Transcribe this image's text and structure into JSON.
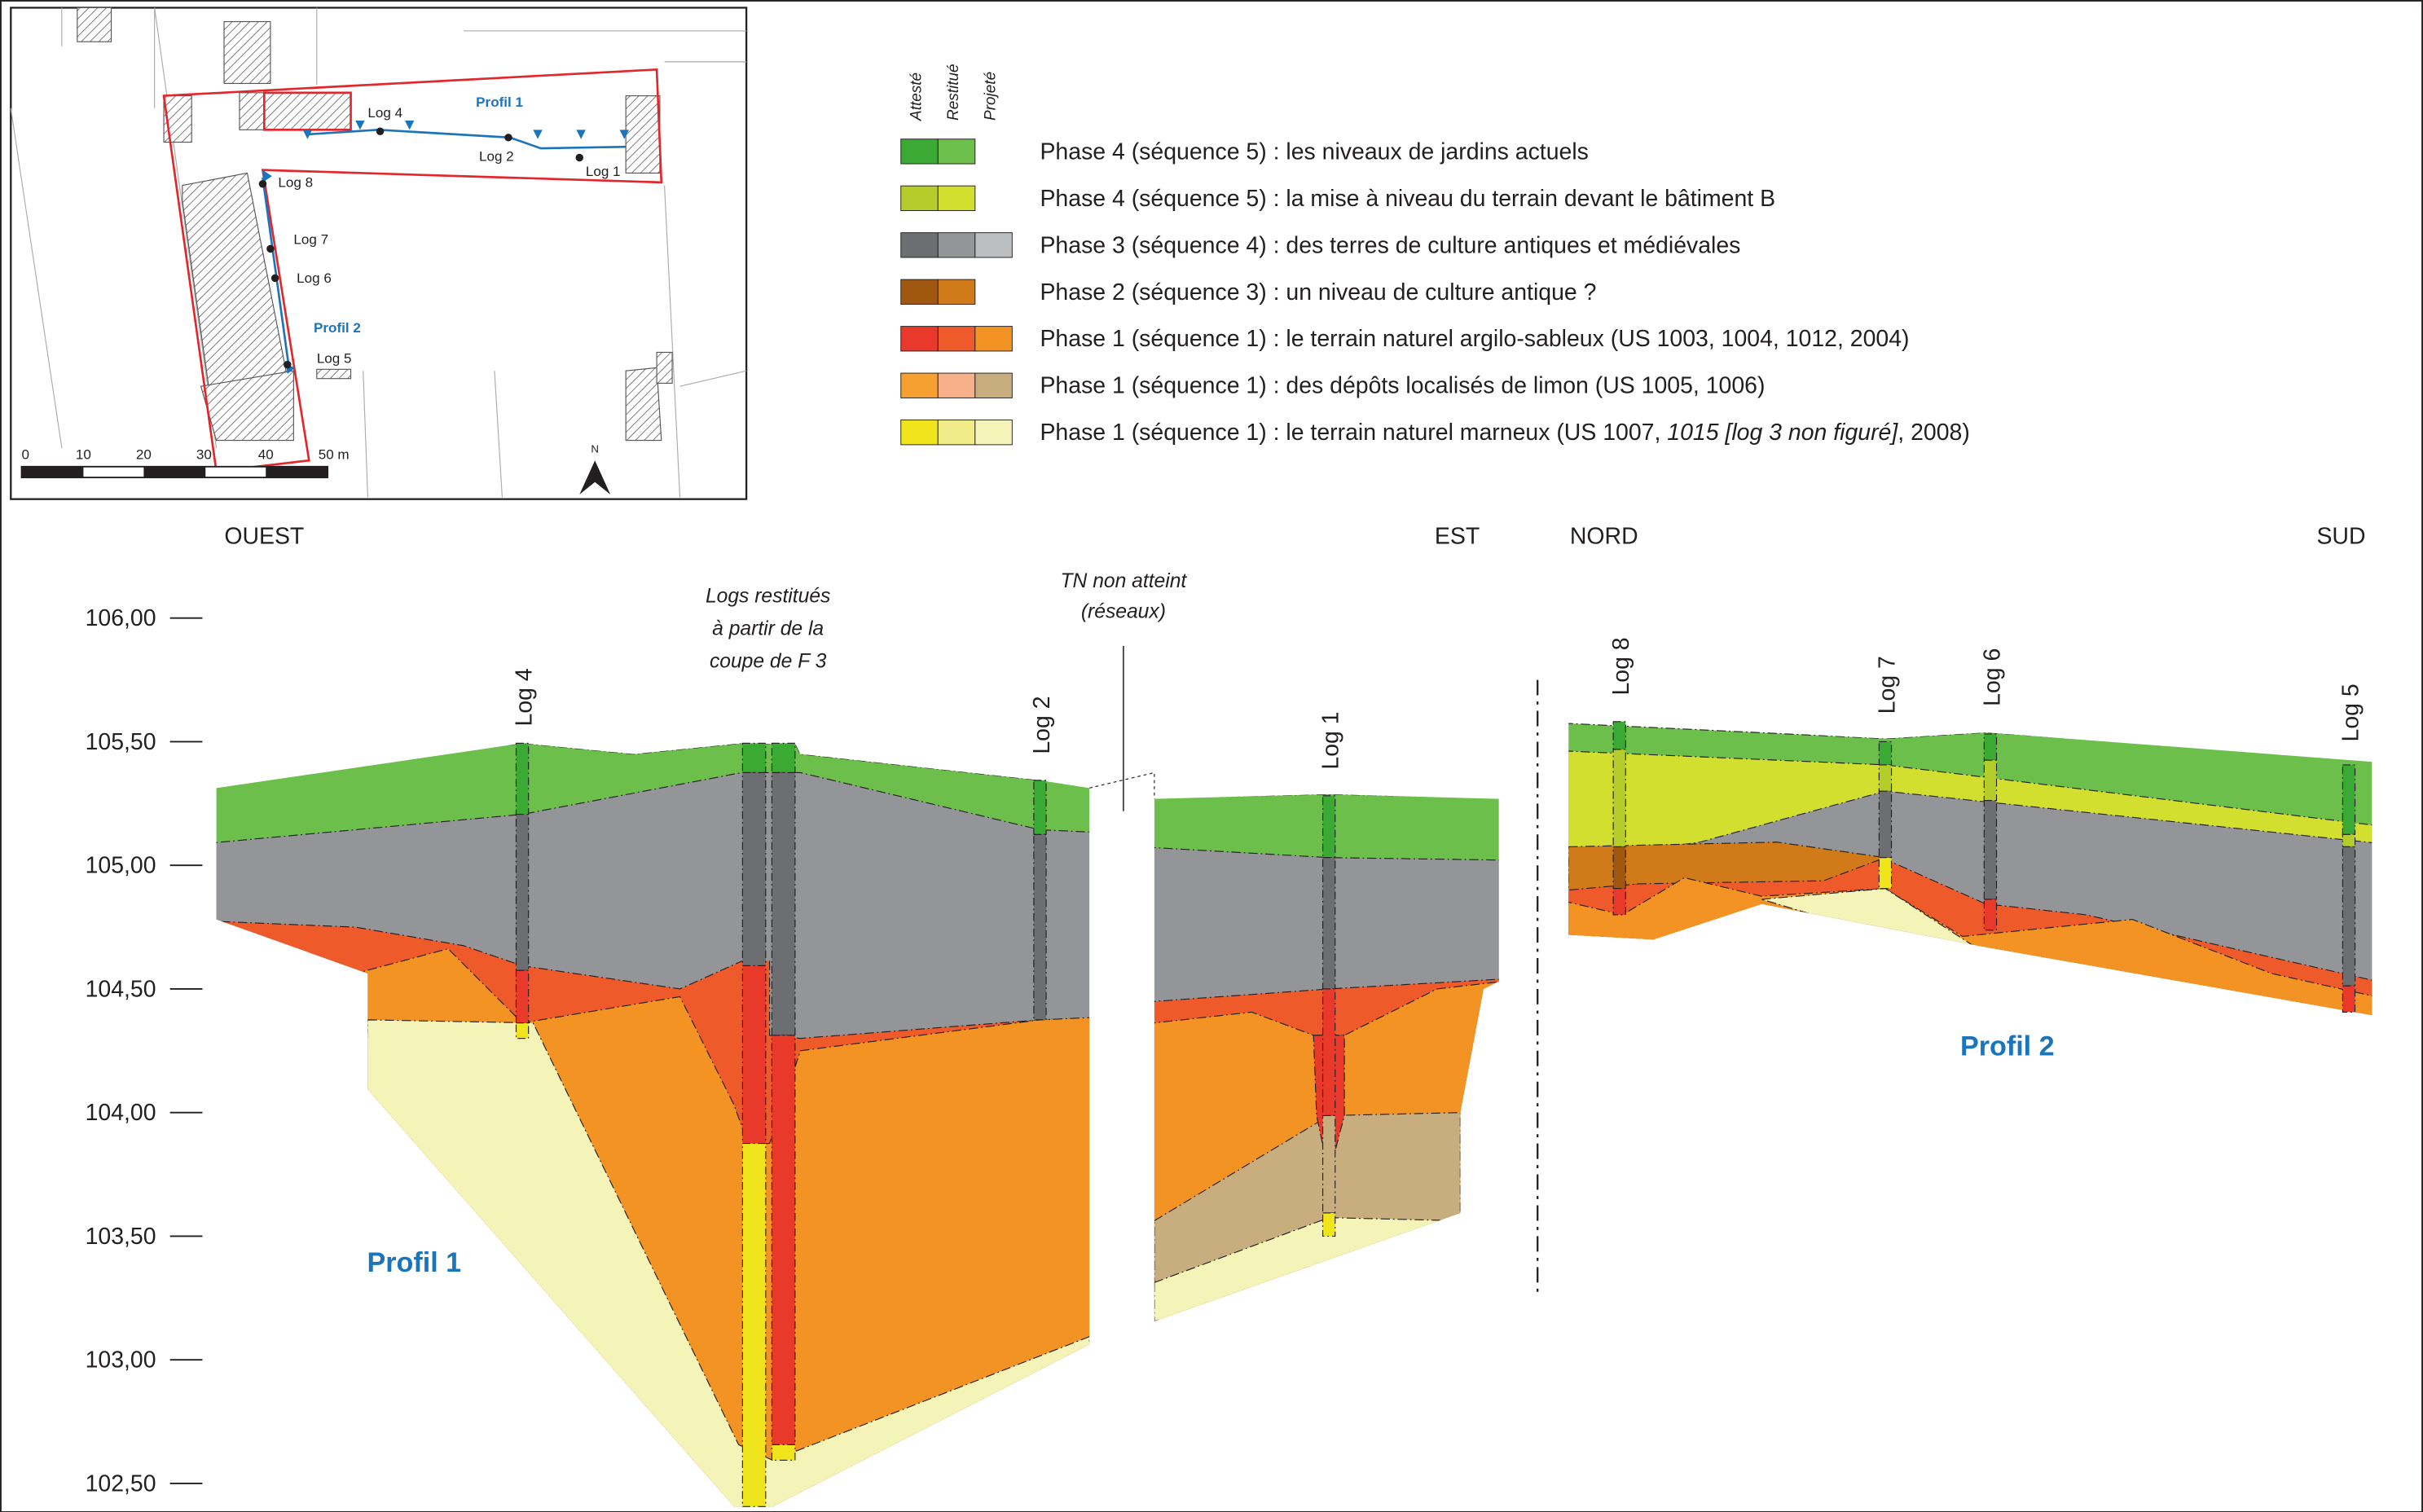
{
  "map": {
    "logs": [
      "Log 4",
      "Log 2",
      "Log 1",
      "Log 8",
      "Log 7",
      "Log 6",
      "Log 5"
    ],
    "profiles": [
      "Profil 1",
      "Profil 2"
    ],
    "scale": [
      "0",
      "10",
      "20",
      "30",
      "40",
      "50 m"
    ],
    "north": "N"
  },
  "legend": {
    "columns": [
      "Attesté",
      "Restitué",
      "Projeté"
    ],
    "items": [
      {
        "label": "Phase 4 (séquence 5) : les niveaux de jardins actuels",
        "colors": [
          "#3aaa35",
          "#6cbf4a"
        ]
      },
      {
        "label": "Phase 4 (séquence 5) : la mise à niveau du terrain devant le bâtiment B",
        "colors": [
          "#b5cd2a",
          "#d3df2e"
        ]
      },
      {
        "label": "Phase 3 (séquence 4) : des terres de culture antiques et médiévales",
        "colors": [
          "#6d6e71",
          "#939598",
          "#bcbec0"
        ]
      },
      {
        "label": "Phase 2 (séquence 3) : un niveau de culture antique ?",
        "colors": [
          "#a0570f",
          "#d07a1a"
        ]
      },
      {
        "label": "Phase 1 (séquence 1) : le terrain naturel argilo-sableux (US 1003, 1004, 1012, 2004)",
        "colors": [
          "#e8392a",
          "#ef5a2a",
          "#f39323"
        ]
      },
      {
        "label": "Phase 1 (séquence 1) : des dépôts localisés de limon (US 1005, 1006)",
        "colors": [
          "#f5a030",
          "#f7b08a",
          "#c8ad7f"
        ]
      },
      {
        "label": "Phase 1 (séquence 1) : le terrain naturel marneux (US 1007, ",
        "label_italic": "1015 [log 3 non figuré]",
        "label_end": ", 2008)",
        "colors": [
          "#f0e51c",
          "#f1ec8a",
          "#f4f3b8"
        ]
      }
    ]
  },
  "section": {
    "directions": [
      "OUEST",
      "EST",
      "NORD",
      "SUD"
    ],
    "elevations": [
      "106,00",
      "105,50",
      "105,00",
      "104,50",
      "104,00",
      "103,50",
      "103,00",
      "102,50"
    ],
    "logs": [
      "Log 4",
      "Log 2",
      "Log 1",
      "Log 8",
      "Log 7",
      "Log 6",
      "Log 5"
    ],
    "note_logs": [
      "Logs restitués",
      "à partir de la",
      "coupe de F 3"
    ],
    "note_tn": [
      "TN non atteint",
      "(réseaux)"
    ],
    "profiles": [
      "Profil 1",
      "Profil 2"
    ]
  }
}
